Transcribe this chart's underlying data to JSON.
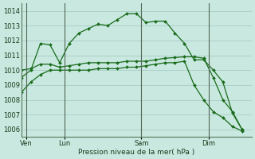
{
  "background_color": "#c8e8e0",
  "grid_color": "#a0c8c0",
  "line_color": "#1a6b1a",
  "vline_color": "#556655",
  "xlabel": "Pression niveau de la mer( hPa )",
  "ylim": [
    1005.5,
    1014.5
  ],
  "yticks": [
    1006,
    1007,
    1008,
    1009,
    1010,
    1011,
    1012,
    1013,
    1014
  ],
  "xlim": [
    0,
    24
  ],
  "day_labels": [
    "Ven",
    "Lun",
    "Sam",
    "Dim"
  ],
  "day_positions": [
    0.5,
    4.5,
    12.5,
    19.5
  ],
  "vline_positions": [
    0.5,
    4.5,
    12.5,
    19.5
  ],
  "num_x_cells": 24,
  "series": [
    {
      "x": [
        0,
        1,
        2,
        3,
        4,
        5,
        6,
        7,
        8,
        9,
        10,
        11,
        12,
        13,
        14,
        15,
        16,
        17,
        18,
        19,
        20,
        21,
        22,
        23
      ],
      "y": [
        1009.5,
        1010.0,
        1011.8,
        1011.7,
        1010.5,
        1011.8,
        1012.5,
        1012.8,
        1013.1,
        1013.0,
        1013.4,
        1013.8,
        1013.8,
        1013.2,
        1013.3,
        1013.3,
        1012.5,
        1011.8,
        1010.7,
        1010.7,
        1010.0,
        1009.2,
        1007.1,
        1006.0
      ]
    },
    {
      "x": [
        0,
        1,
        2,
        3,
        4,
        5,
        6,
        7,
        8,
        9,
        10,
        11,
        12,
        13,
        14,
        15,
        16,
        17,
        18,
        19,
        20,
        21,
        22,
        23
      ],
      "y": [
        1010.0,
        1010.1,
        1010.4,
        1010.4,
        1010.2,
        1010.3,
        1010.4,
        1010.5,
        1010.5,
        1010.5,
        1010.5,
        1010.6,
        1010.6,
        1010.6,
        1010.7,
        1010.8,
        1010.85,
        1010.9,
        1010.9,
        1010.8,
        1009.5,
        1008.0,
        1007.2,
        1006.0
      ]
    },
    {
      "x": [
        0,
        1,
        2,
        3,
        4,
        5,
        6,
        7,
        8,
        9,
        10,
        11,
        12,
        13,
        14,
        15,
        16,
        17,
        18,
        19,
        20,
        21,
        22,
        23
      ],
      "y": [
        1008.5,
        1009.2,
        1009.7,
        1010.0,
        1010.0,
        1010.0,
        1010.0,
        1010.0,
        1010.1,
        1010.1,
        1010.1,
        1010.2,
        1010.2,
        1010.3,
        1010.4,
        1010.5,
        1010.5,
        1010.6,
        1009.0,
        1008.0,
        1007.2,
        1006.8,
        1006.2,
        1005.9
      ]
    }
  ]
}
